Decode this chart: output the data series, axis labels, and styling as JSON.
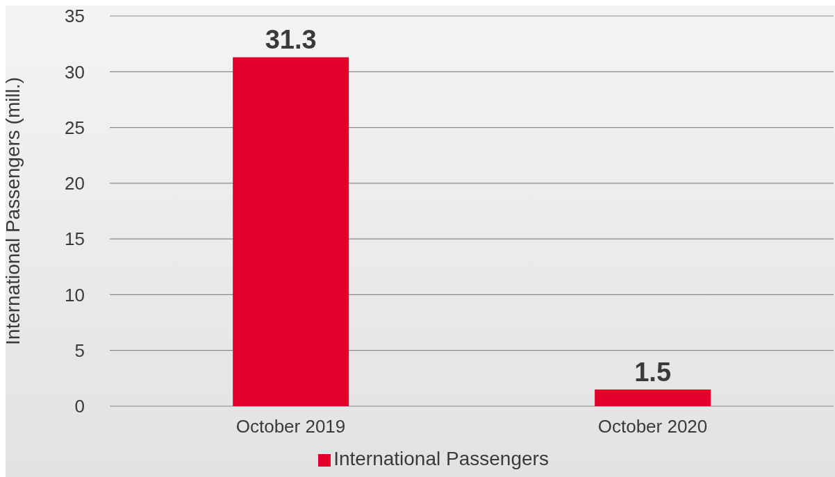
{
  "chart_data": {
    "type": "bar",
    "ylabel": "International Passengers (mill.)",
    "categories": [
      "October 2019",
      "October 2020"
    ],
    "series": [
      {
        "name": "International Passengers",
        "color": "#e4002b",
        "values": [
          31.3,
          1.5
        ]
      }
    ],
    "ylim": [
      0,
      35
    ],
    "yticks": [
      0,
      5,
      10,
      15,
      20,
      25,
      30,
      35
    ],
    "grid": "y",
    "legend": "bottom",
    "data_labels": true
  }
}
